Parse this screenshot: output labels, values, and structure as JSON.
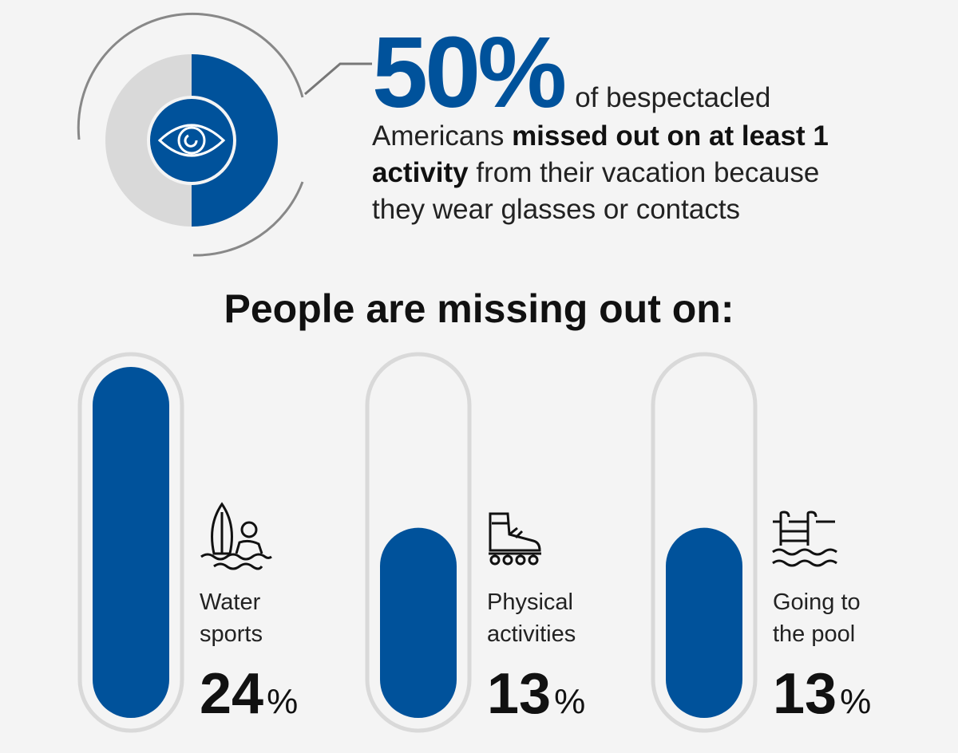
{
  "colors": {
    "accent": "#00529b",
    "track": "#d9d9d9",
    "background": "#f4f4f4"
  },
  "headline": {
    "percent": 50,
    "percent_text": "50%",
    "tail": "of bespectacled",
    "line2_plain": "Americans ",
    "line2_bold": "missed out on at least 1",
    "line3_bold": "activity",
    "line3_plain": " from their vacation because",
    "line4": "they wear glasses or contacts",
    "icon": "eye-icon"
  },
  "section_title": "People are missing out on:",
  "chart_data": {
    "type": "bar",
    "categories": [
      "Water sports",
      "Physical activities",
      "Going to the pool"
    ],
    "values": [
      24,
      13,
      13
    ],
    "ylim": [
      0,
      24
    ],
    "title": "People are missing out on:"
  },
  "cards": [
    {
      "label_line1": "Water",
      "label_line2": "sports",
      "value": "24",
      "unit": "%",
      "icon": "surfboard-swimmer-icon"
    },
    {
      "label_line1": "Physical",
      "label_line2": "activities",
      "value": "13",
      "unit": "%",
      "icon": "rollerblade-icon"
    },
    {
      "label_line1": "Going to",
      "label_line2": "the pool",
      "value": "13",
      "unit": "%",
      "icon": "pool-ladder-icon"
    }
  ]
}
